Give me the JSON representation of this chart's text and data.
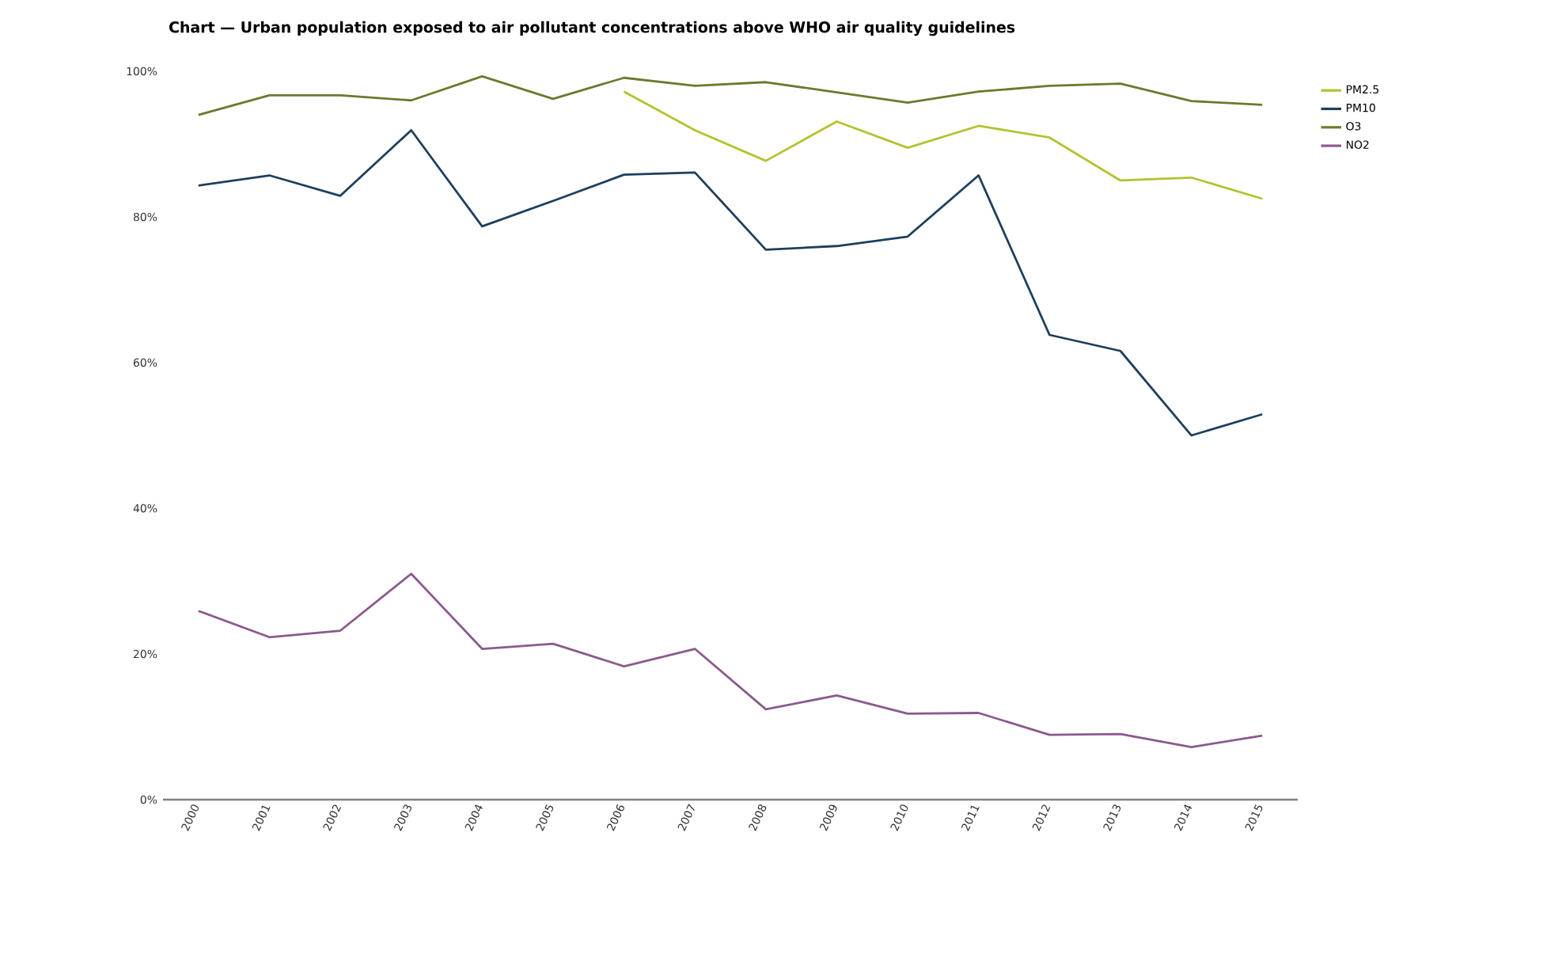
{
  "chart_data": {
    "type": "line",
    "title": "Chart — Urban population exposed to air pollutant concentrations above WHO air quality guidelines",
    "categories": [
      "2000",
      "2001",
      "2002",
      "2003",
      "2004",
      "2005",
      "2006",
      "2007",
      "2008",
      "2009",
      "2010",
      "2011",
      "2012",
      "2013",
      "2014",
      "2015"
    ],
    "series": [
      {
        "name": "PM2.5",
        "color": "#b5c22f",
        "values": [
          null,
          null,
          null,
          null,
          null,
          null,
          97.2,
          91.9,
          87.7,
          93.1,
          89.5,
          92.5,
          90.9,
          85.0,
          85.4,
          82.5
        ]
      },
      {
        "name": "PM10",
        "color": "#1d3f5e",
        "values": [
          84.3,
          85.7,
          82.9,
          91.9,
          78.7,
          82.2,
          85.8,
          86.1,
          75.5,
          76.0,
          77.3,
          85.7,
          63.8,
          61.6,
          50.0,
          52.9
        ]
      },
      {
        "name": "O3",
        "color": "#6b7a2e",
        "values": [
          94.0,
          96.7,
          96.7,
          96.0,
          99.3,
          96.2,
          99.1,
          98.0,
          98.5,
          97.1,
          95.7,
          97.2,
          98.0,
          98.3,
          95.9,
          95.4
        ]
      },
      {
        "name": "NO2",
        "color": "#8b5a8c",
        "values": [
          25.9,
          22.3,
          23.2,
          31.0,
          20.7,
          21.4,
          18.3,
          20.7,
          12.4,
          14.3,
          11.8,
          11.9,
          8.9,
          9.0,
          7.2,
          8.8
        ]
      }
    ],
    "ylim": [
      0,
      100
    ],
    "yticks": [
      {
        "value": 0,
        "label": "0%"
      },
      {
        "value": 20,
        "label": "20%"
      },
      {
        "value": 40,
        "label": "40%"
      },
      {
        "value": 60,
        "label": "60%"
      },
      {
        "value": 80,
        "label": "80%"
      },
      {
        "value": 100,
        "label": "100%"
      }
    ],
    "legend": "top right",
    "grid": false,
    "marker": "none",
    "line_style": "solid"
  }
}
